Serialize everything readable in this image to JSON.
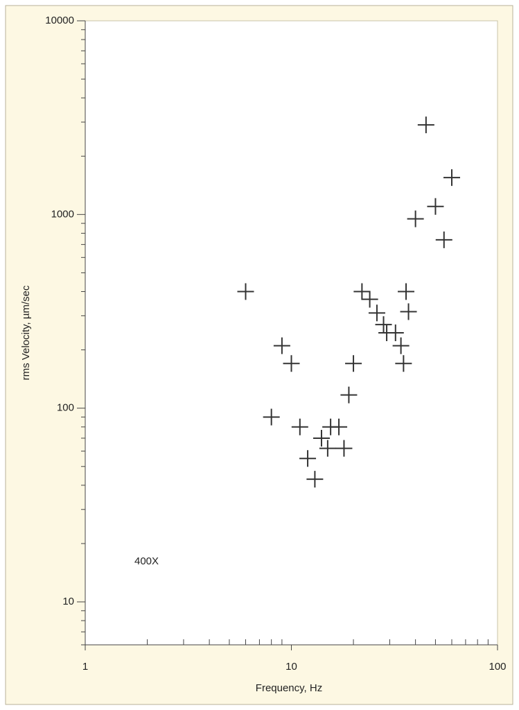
{
  "chart_data": {
    "type": "scatter",
    "x_label": "Frequency, Hz",
    "y_label": "rms Velocity, µm/sec",
    "annotation": "400X",
    "x": [
      6,
      9,
      10,
      8,
      11,
      12,
      13,
      14,
      15,
      15.5,
      17,
      18,
      19,
      20,
      22,
      24,
      26,
      28,
      29,
      32,
      34,
      35,
      36,
      37,
      40,
      45,
      50,
      55,
      60
    ],
    "values": [
      400,
      210,
      170,
      90,
      80,
      55,
      43,
      70,
      62,
      80,
      80,
      62,
      117,
      170,
      400,
      365,
      310,
      270,
      245,
      245,
      210,
      170,
      400,
      315,
      950,
      2900,
      1100,
      740,
      1550
    ],
    "color": "#333333",
    "xlim": [
      1,
      100
    ],
    "xticks": [
      1,
      10,
      100
    ],
    "ylim": [
      6,
      10000
    ],
    "yticks": [
      10,
      100,
      1000,
      10000
    ],
    "xlog": true,
    "ylog": true,
    "grid": false
  }
}
